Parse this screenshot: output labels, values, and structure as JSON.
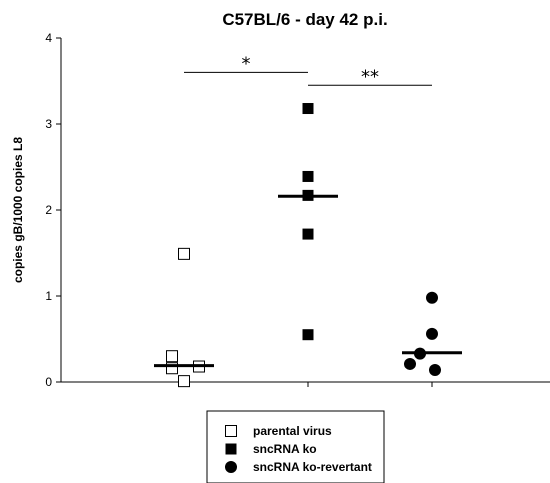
{
  "chart_data": {
    "type": "scatter",
    "title": "C57BL/6 - day 42 p.i.",
    "ylabel": "copies gB/1000 copies L8",
    "xlabel": "",
    "ylim": [
      0,
      4
    ],
    "yticks": [
      "0",
      "1",
      "2",
      "3",
      "4"
    ],
    "legend_position": "bottom",
    "series": [
      {
        "name": "parental virus",
        "marker": "open-square",
        "values": [
          1.49,
          0.3,
          0.18,
          0.16,
          0.01
        ],
        "median": 0.19
      },
      {
        "name": "sncRNA ko",
        "marker": "filled-square",
        "values": [
          3.18,
          2.39,
          2.17,
          1.72,
          0.55
        ],
        "median": 2.16
      },
      {
        "name": "sncRNA ko-revertant",
        "marker": "filled-circle",
        "values": [
          0.98,
          0.56,
          0.33,
          0.21,
          0.14
        ],
        "median": 0.34
      }
    ],
    "annotations": [
      {
        "label": "*",
        "from_group": 0,
        "to_group": 1,
        "y": 3.6
      },
      {
        "label": "**",
        "from_group": 1,
        "to_group": 2,
        "y": 3.45
      }
    ]
  }
}
